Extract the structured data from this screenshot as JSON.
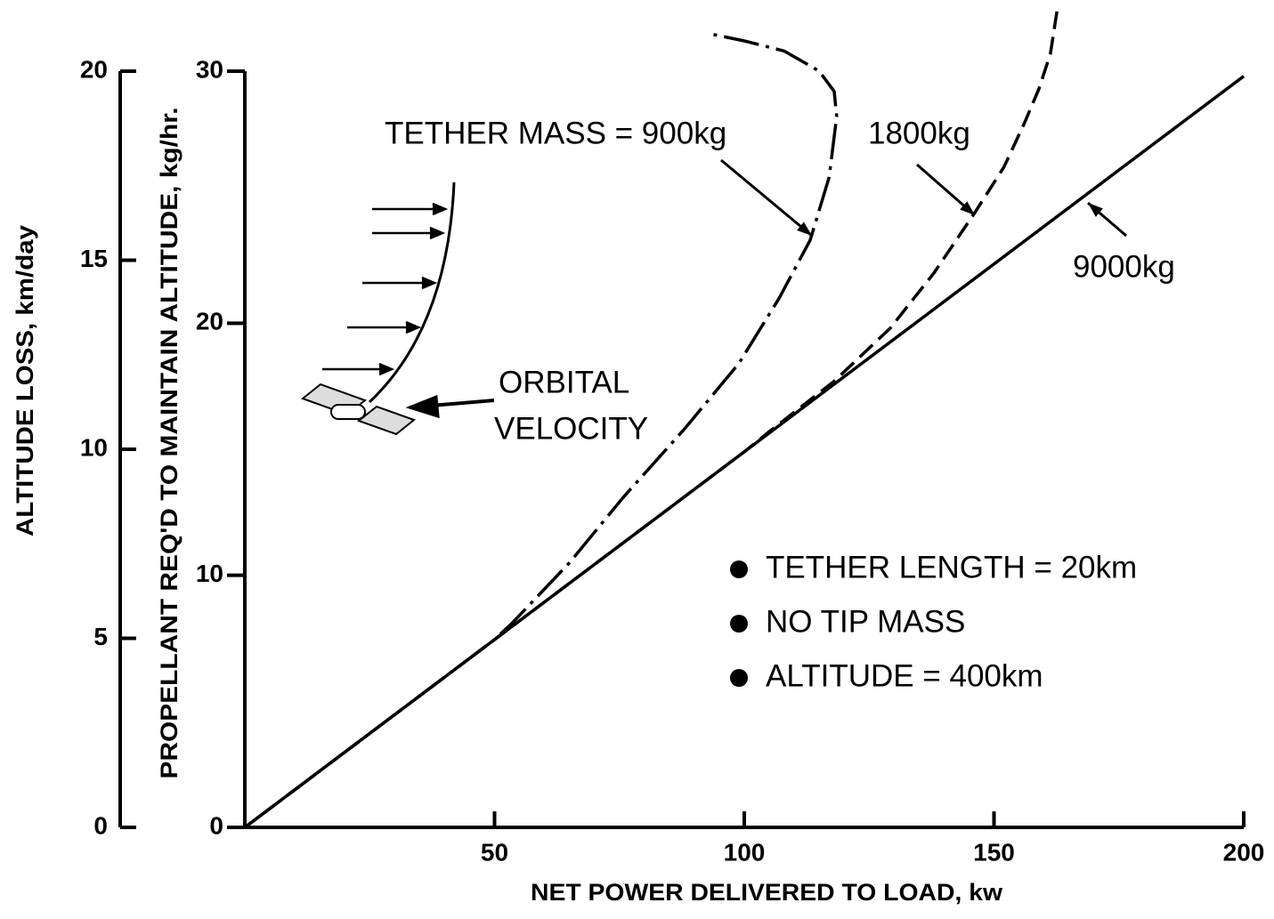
{
  "chart_data": {
    "type": "line",
    "xlabel": "NET POWER DELIVERED TO LOAD, kw",
    "ylabel": "PROPELLANT REQ'D TO MAINTAIN ALTITUDE, kg/hr.",
    "y2label": "ALTITUDE LOSS, km/day",
    "xlim": [
      0,
      200
    ],
    "xticks": [
      50,
      100,
      150,
      200
    ],
    "ylim": [
      0,
      30
    ],
    "yticks": [
      0,
      10,
      20,
      30
    ],
    "y2lim": [
      0,
      20
    ],
    "y2ticks": [
      0,
      5,
      10,
      15,
      20
    ],
    "series": [
      {
        "name": "900kg",
        "color": "#000000",
        "dash": "dashdot",
        "x": [
          0,
          50,
          53.5,
          65,
          75.8,
          88,
          98.9,
          107,
          113.2,
          117,
          118.5,
          118,
          115,
          108,
          100,
          92.7
        ],
        "values": [
          0,
          7.45,
          8.1,
          10.5,
          13.1,
          15.8,
          18.4,
          21,
          23.3,
          25.8,
          28.2,
          29.2,
          30,
          30.8,
          31.2,
          31.5
        ]
      },
      {
        "name": "1800kg",
        "color": "#000000",
        "dash": "dashed",
        "x": [
          0,
          100,
          105,
          118,
          129.2,
          138,
          146.2,
          152,
          156,
          159,
          161.3,
          162.7
        ],
        "values": [
          0,
          14.9,
          15.7,
          17.7,
          19.8,
          22,
          24.4,
          26.2,
          27.9,
          29.3,
          30.7,
          32.5
        ]
      },
      {
        "name": "9000kg",
        "color": "#000000",
        "dash": "solid",
        "x": [
          0,
          200
        ],
        "values": [
          0,
          29.8
        ]
      }
    ],
    "annotations": [
      "TETHER MASS = 900kg",
      "1800kg",
      "9000kg",
      "ORBITAL",
      "VELOCITY"
    ],
    "notes": [
      "TETHER LENGTH = 20km",
      "NO TIP MASS",
      "ALTITUDE = 400km"
    ]
  }
}
